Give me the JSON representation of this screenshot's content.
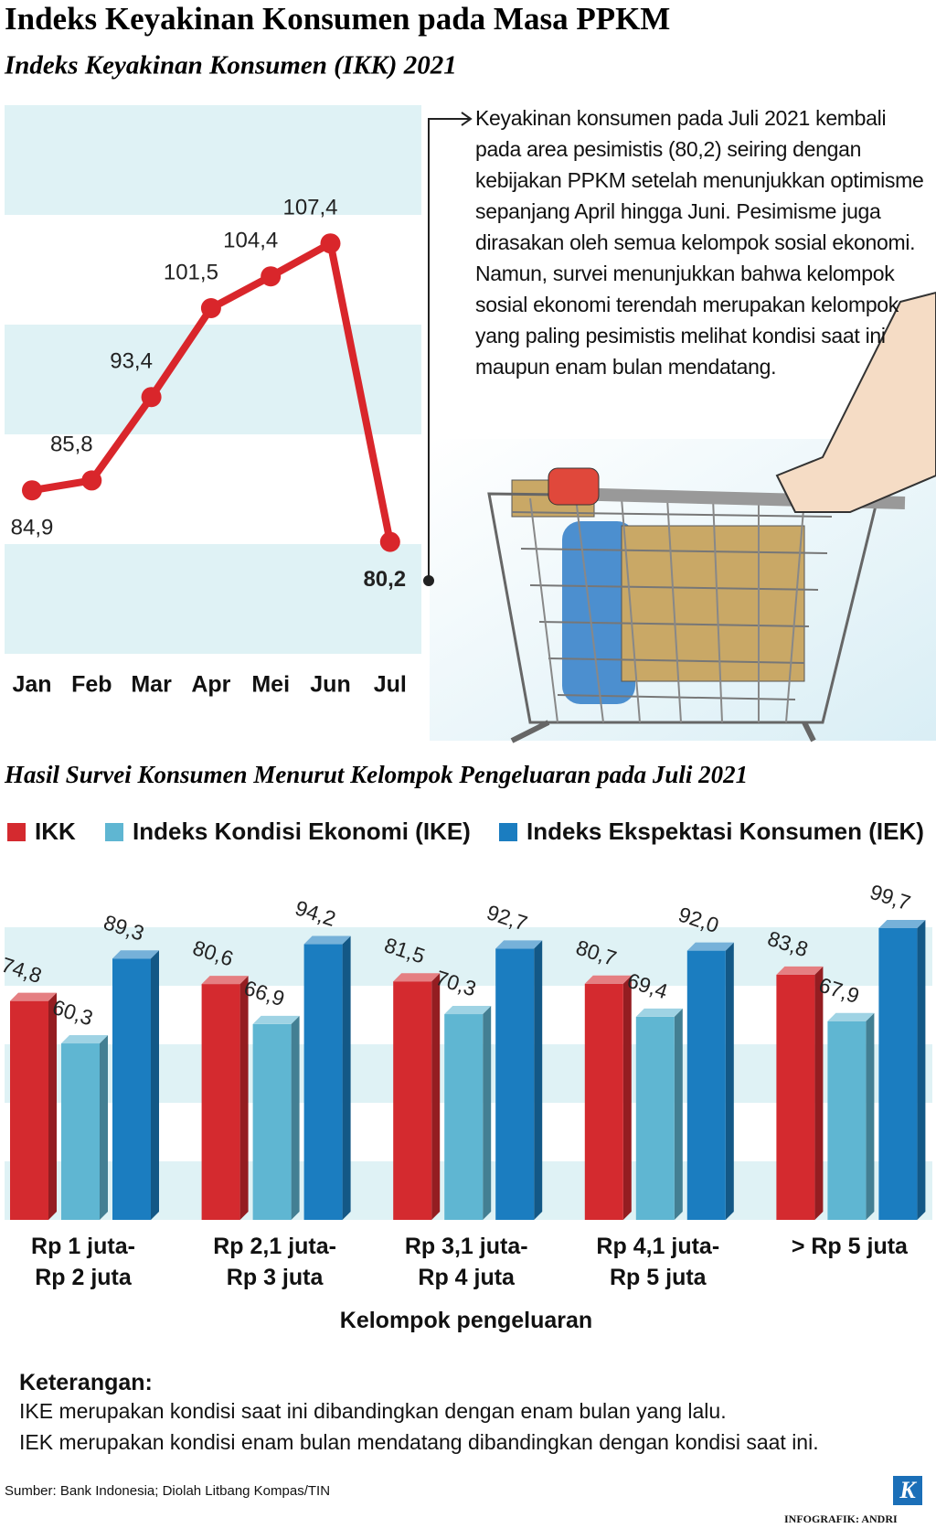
{
  "title": "Indeks Keyakinan Konsumen pada Masa PPKM",
  "chart_data": [
    {
      "type": "line",
      "title": "Indeks Keyakinan Konsumen (IKK) 2021",
      "categories": [
        "Jan",
        "Feb",
        "Mar",
        "Apr",
        "Mei",
        "Jun",
        "Jul"
      ],
      "values": [
        84.9,
        85.8,
        93.4,
        101.5,
        104.4,
        107.4,
        80.2
      ],
      "value_labels": [
        "84,9",
        "85,8",
        "93,4",
        "101,5",
        "104,4",
        "107,4",
        "80,2"
      ],
      "color": "#d9262b",
      "ylim": [
        70,
        120
      ],
      "yticks": [
        70,
        80,
        90,
        100,
        110,
        120
      ],
      "annotation": "Keyakinan konsumen pada Juli 2021 kembali pada area pesimistis (80,2) seiring dengan kebijakan PPKM setelah menunjukkan optimisme sepanjang April hingga Juni. Pesimisme juga dirasakan oleh semua kelompok sosial ekonomi. Namun, survei menunjukkan bahwa kelompok sosial ekonomi terendah merupakan kelompok yang paling pesimistis melihat kondisi saat ini maupun enam bulan mendatang."
    },
    {
      "type": "bar",
      "title": "Hasil Survei Konsumen Menurut Kelompok Pengeluaran pada Juli 2021",
      "categories": [
        "Rp 1 juta-\nRp 2 juta",
        "Rp 2,1 juta-\nRp 3 juta",
        "Rp 3,1 juta-\nRp 4 juta",
        "Rp 4,1 juta-\nRp 5 juta",
        "> Rp 5 juta"
      ],
      "x_label": "Kelompok pengeluaran",
      "ylim": [
        0,
        110
      ],
      "yticks": [
        0,
        20,
        40,
        60,
        80,
        100
      ],
      "series": [
        {
          "name": "IKK",
          "color": "#d42a2f",
          "values": [
            74.8,
            80.6,
            81.5,
            80.7,
            83.8
          ],
          "value_labels": [
            "74,8",
            "80,6",
            "81,5",
            "80,7",
            "83,8"
          ]
        },
        {
          "name": "Indeks Kondisi Ekonomi (IKE)",
          "color": "#5fb6d2",
          "values": [
            60.3,
            66.9,
            70.3,
            69.4,
            67.9
          ],
          "value_labels": [
            "60,3",
            "66,9",
            "70,3",
            "69,4",
            "67,9"
          ]
        },
        {
          "name": "Indeks Ekspektasi Konsumen (IEK)",
          "color": "#1b7dc0",
          "values": [
            89.3,
            94.2,
            92.7,
            92.0,
            99.7
          ],
          "value_labels": [
            "89,3",
            "94,2",
            "92,7",
            "92,0",
            "99,7"
          ]
        }
      ]
    }
  ],
  "notes": {
    "title": "Keterangan:",
    "lines": [
      "IKE merupakan kondisi saat ini dibandingkan dengan enam bulan yang lalu.",
      "IEK merupakan kondisi enam bulan mendatang dibandingkan dengan kondisi saat ini."
    ]
  },
  "source": "Sumber: Bank Indonesia; Diolah Litbang Kompas/TIN",
  "logo": "K",
  "credit": "INFOGRAFIK: ANDRI"
}
